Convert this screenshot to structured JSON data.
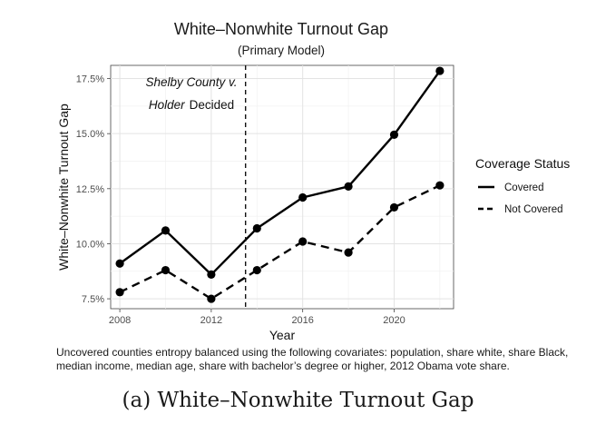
{
  "chart_data": {
    "type": "line",
    "title": "White–Nonwhite Turnout Gap",
    "subtitle": "(Primary Model)",
    "xlabel": "Year",
    "ylabel": "White–Nonwhite Turnout Gap",
    "x": [
      2008,
      2010,
      2012,
      2014,
      2016,
      2018,
      2020,
      2022
    ],
    "xlim": [
      2007.6,
      2022.6
    ],
    "ylim": [
      7.05,
      18.1
    ],
    "xticks": [
      2008,
      2012,
      2016,
      2020
    ],
    "xtick_labels": [
      "2008",
      "2012",
      "2016",
      "2020"
    ],
    "yticks": [
      7.5,
      10.0,
      12.5,
      15.0,
      17.5
    ],
    "ytick_labels": [
      "7.5%",
      "10.0%",
      "12.5%",
      "15.0%",
      "17.5%"
    ],
    "grid": true,
    "legend_title": "Coverage Status",
    "legend_position": "right",
    "series": [
      {
        "name": "Covered",
        "dash": "solid",
        "values": [
          9.1,
          10.6,
          8.6,
          10.7,
          12.1,
          12.6,
          14.95,
          17.85
        ]
      },
      {
        "name": "Not Covered",
        "dash": "dashed",
        "values": [
          7.8,
          8.8,
          7.5,
          8.8,
          10.1,
          9.6,
          11.65,
          12.65
        ]
      }
    ],
    "vline": {
      "x": 2013.5,
      "style": "dashed"
    },
    "annotation": {
      "line1": "Shelby County v.",
      "line2_italic": "Holder",
      "line2_plain": "Decided"
    }
  },
  "note": "Uncovered counties entropy balanced using the following covariates: population, share white, share Black, median income, median age, share with bachelor’s degree or higher, 2012 Obama vote share.",
  "caption": "(a) White–Nonwhite Turnout Gap"
}
